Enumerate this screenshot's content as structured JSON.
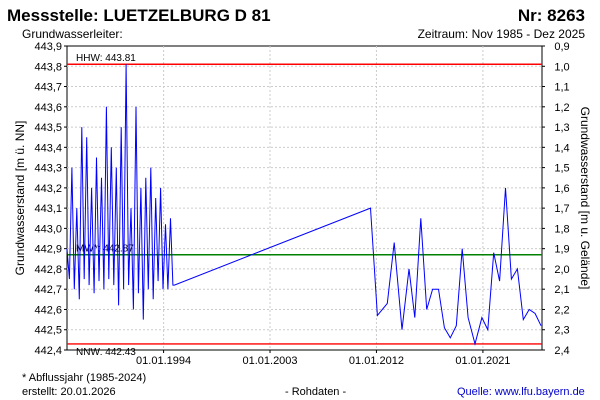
{
  "header": {
    "title": "Messstelle: LUETZELBURG D 81",
    "number": "Nr: 8263",
    "subtitle_left": "Grundwasserleiter:",
    "subtitle_right": "Zeitraum: Nov 1985 - Dez 2025"
  },
  "footer": {
    "note": "* Abflussjahr (1985-2024)",
    "created": "erstellt:  20.01.2026",
    "raw": "- Rohdaten -",
    "source_label": "Quelle:",
    "source_link": "www.lfu.bayern.de"
  },
  "colors": {
    "line": "#0000ff",
    "reference_high_low": "#ff0000",
    "reference_mean": "#008000",
    "grid": "#cccccc"
  },
  "chart_data": {
    "type": "line",
    "ylabel": "Grundwasserstand [m ü. NN]",
    "ylabel_right": "Grundwasserstand [m u. Gelände]",
    "ylim": [
      442.4,
      443.9
    ],
    "yticks": [
      "442,4",
      "442,5",
      "442,6",
      "442,7",
      "442,8",
      "442,9",
      "443,0",
      "443,1",
      "443,2",
      "443,3",
      "443,4",
      "443,5",
      "443,6",
      "443,7",
      "443,8",
      "443,9"
    ],
    "y_right_ticks": [
      "0,9",
      "1,0",
      "1,1",
      "1,2",
      "1,3",
      "1,4",
      "1,5",
      "1,6",
      "1,7",
      "1,8",
      "1,9",
      "2,0",
      "2,1",
      "2,2",
      "2,3",
      "2,4"
    ],
    "xlim": [
      "1985-11-01",
      "2025-12-31"
    ],
    "xticks": [
      "01.01.1994",
      "01.01.2003",
      "01.01.2012",
      "01.01.2021"
    ],
    "grid": true,
    "reference_lines": [
      {
        "label": "HHW: 443.81",
        "value": 443.81
      },
      {
        "label": "MW*: 442.87",
        "value": 442.87
      },
      {
        "label": "NNW: 442.43",
        "value": 442.43
      }
    ],
    "series": [
      {
        "x": [
          "1985-11-01",
          "1986-01-15",
          "1986-04-01",
          "1986-06-15",
          "1986-09-01",
          "1986-11-15",
          "1987-02-01",
          "1987-04-15",
          "1987-07-01",
          "1987-09-15",
          "1987-12-01",
          "1988-02-15",
          "1988-05-01",
          "1988-07-15",
          "1988-10-01",
          "1988-12-15",
          "1989-03-01",
          "1989-05-15",
          "1989-08-01",
          "1989-10-15",
          "1990-01-01",
          "1990-03-15",
          "1990-06-01",
          "1990-08-15",
          "1990-11-01",
          "1991-01-15",
          "1991-04-01",
          "1991-06-15",
          "1991-09-01",
          "1991-11-15",
          "1992-02-01",
          "1992-04-15",
          "1992-07-01",
          "1992-09-15",
          "1992-12-01",
          "1993-02-15",
          "1993-05-01",
          "1993-07-15",
          "1993-10-01",
          "1993-12-15",
          "1994-03-01",
          "1994-05-15",
          "1994-08-01",
          "1994-10-15",
          "1994-12-01",
          "2011-07-01",
          "2012-02-01",
          "2012-12-01",
          "2013-07-01",
          "2014-03-01",
          "2014-10-01",
          "2015-04-01",
          "2015-10-01",
          "2016-04-01",
          "2016-10-01",
          "2017-04-01",
          "2017-10-01",
          "2018-04-01",
          "2018-10-01",
          "2019-04-01",
          "2019-10-01",
          "2020-05-01",
          "2020-12-01",
          "2021-06-01",
          "2021-12-01",
          "2022-06-01",
          "2022-12-01",
          "2023-06-01",
          "2023-12-01",
          "2024-06-01",
          "2024-12-01",
          "2025-06-01",
          "2025-12-01"
        ],
        "y": [
          442.9,
          442.75,
          443.3,
          442.7,
          443.1,
          442.65,
          443.5,
          442.75,
          443.45,
          442.72,
          443.2,
          442.68,
          443.35,
          442.74,
          443.25,
          442.7,
          443.6,
          442.75,
          443.4,
          442.72,
          443.3,
          442.62,
          443.5,
          442.7,
          443.81,
          442.72,
          443.1,
          442.6,
          443.6,
          442.68,
          443.2,
          442.55,
          443.25,
          442.7,
          443.3,
          442.65,
          443.15,
          442.74,
          443.2,
          442.7,
          443.02,
          442.7,
          443.05,
          442.72,
          442.72,
          443.1,
          442.57,
          442.63,
          442.93,
          442.5,
          442.8,
          442.56,
          443.05,
          442.6,
          442.7,
          442.7,
          442.51,
          442.46,
          442.52,
          442.9,
          442.56,
          442.43,
          442.56,
          442.5,
          442.88,
          442.74,
          443.2,
          442.75,
          442.8,
          442.55,
          442.6,
          442.58,
          442.52
        ]
      }
    ]
  }
}
